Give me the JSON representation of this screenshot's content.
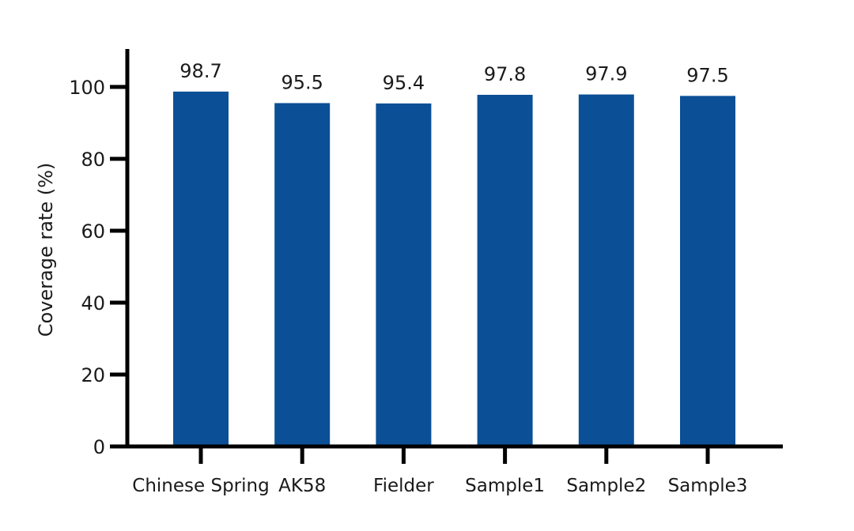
{
  "chart_data": {
    "type": "bar",
    "title": "",
    "xlabel": "",
    "ylabel": "Coverage rate (%)",
    "categories": [
      "Chinese Spring",
      "AK58",
      "Fielder",
      "Sample1",
      "Sample2",
      "Sample3"
    ],
    "values": [
      98.7,
      95.5,
      95.4,
      97.8,
      97.9,
      97.5
    ],
    "value_labels": [
      "98.7",
      "95.5",
      "95.4",
      "97.8",
      "97.9",
      "97.5"
    ],
    "ylim": [
      0,
      110
    ],
    "yticks": [
      0,
      20,
      40,
      60,
      80,
      100
    ],
    "ytick_labels": [
      "0",
      "20",
      "40",
      "60",
      "80",
      "100"
    ],
    "grid": false,
    "legend": "none",
    "bar_color": "#0b4f96",
    "axis_color": "#000000"
  }
}
